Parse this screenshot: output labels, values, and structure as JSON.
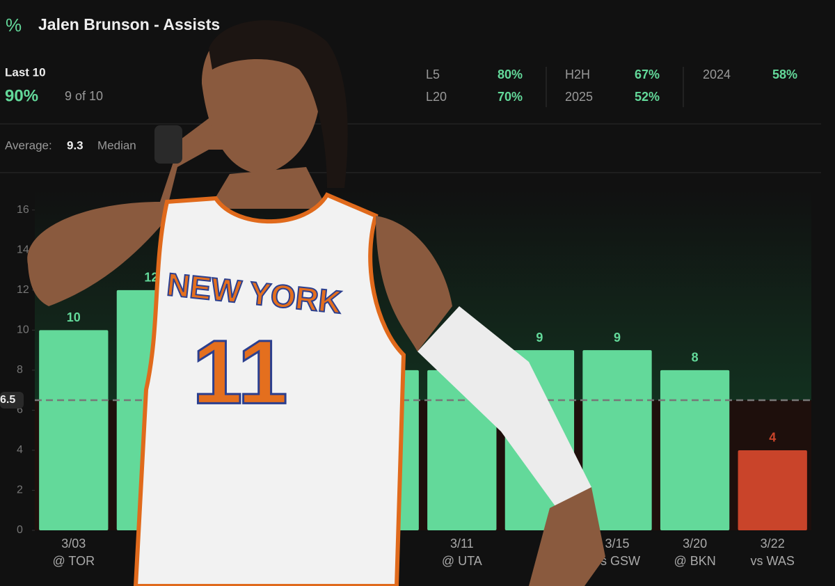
{
  "header": {
    "icon": "%",
    "title": "Jalen Brunson - Assists"
  },
  "summary": {
    "label": "Last 10",
    "hit_rate": "90%",
    "count": "9 of 10",
    "splits": [
      {
        "name": "L5",
        "value": "80%"
      },
      {
        "name": "L20",
        "value": "70%"
      },
      {
        "name": "H2H",
        "value": "67%"
      },
      {
        "name": "2025",
        "value": "52%"
      },
      {
        "name": "2024",
        "value": "58%"
      }
    ],
    "average_label": "Average:",
    "average": "9.3",
    "median_label": "Median"
  },
  "jersey": {
    "team": "NEW YORK",
    "number": "11"
  },
  "chart_data": {
    "type": "bar",
    "categories": [
      "3/03",
      null,
      null,
      null,
      null,
      "3/11",
      null,
      "3/15",
      "3/20",
      "3/22"
    ],
    "opponents": [
      "@ TOR",
      null,
      null,
      null,
      null,
      "@ UTA",
      null,
      "vs GSW",
      "@ BKN",
      "vs WAS"
    ],
    "values": [
      10,
      12,
      null,
      null,
      8,
      8,
      9,
      9,
      8,
      4
    ],
    "line": 6.5,
    "colors": {
      "over": "#63d99a",
      "under": "#c9442a"
    },
    "ylim": [
      0,
      17
    ],
    "yticks": [
      0,
      2,
      4,
      6,
      8,
      10,
      12,
      14,
      16
    ]
  }
}
